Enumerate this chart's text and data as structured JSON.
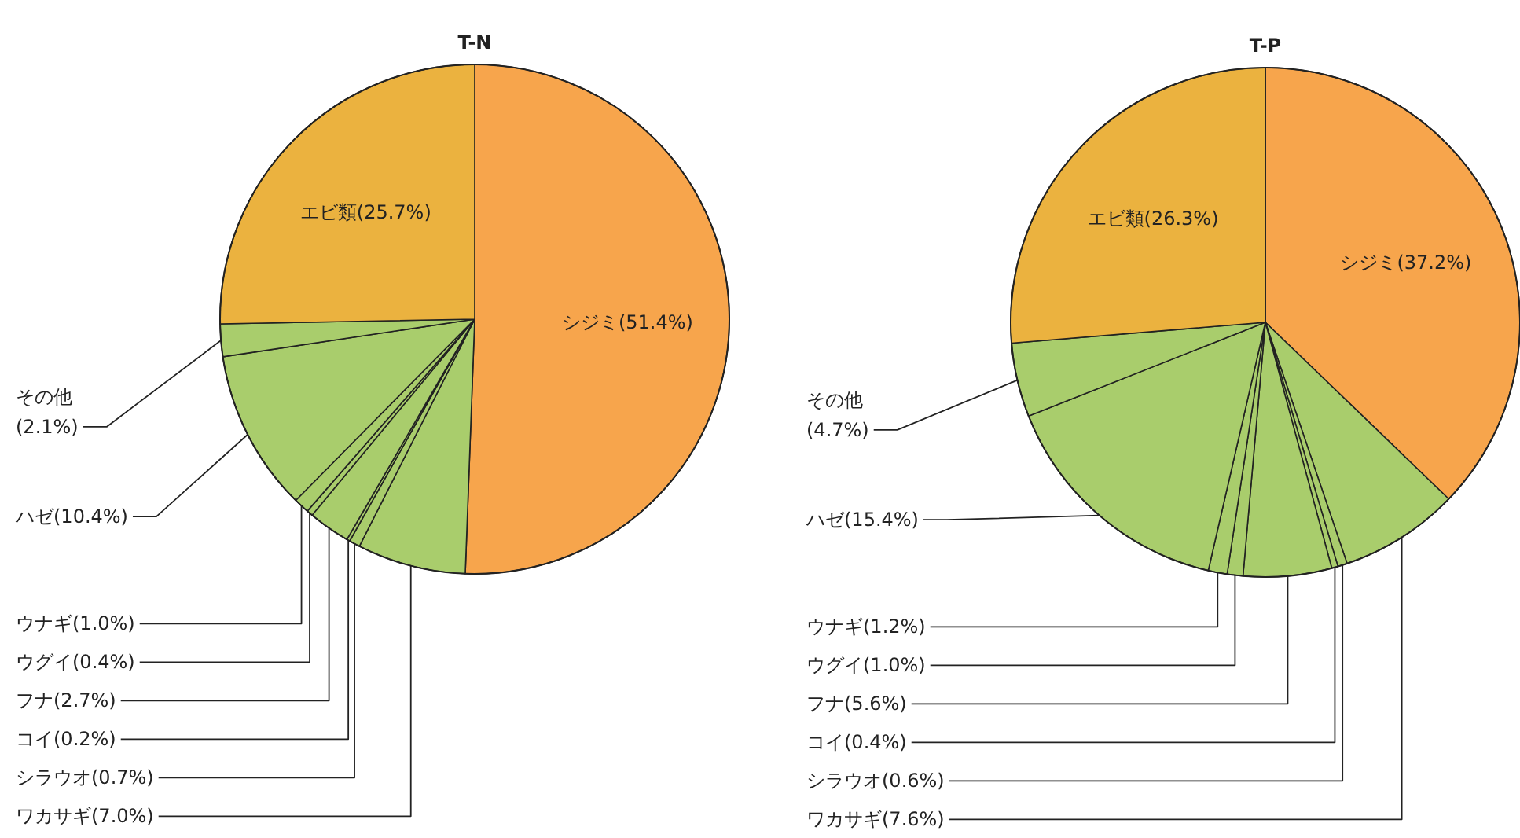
{
  "chart_data": [
    {
      "type": "pie",
      "title": "T-N",
      "categories": [
        "シジミ",
        "ワカサギ",
        "シラウオ",
        "コイ",
        "フナ",
        "ウグイ",
        "ウナギ",
        "ハゼ",
        "その他",
        "エビ類"
      ],
      "values": [
        51.4,
        7.0,
        0.7,
        0.2,
        2.7,
        0.4,
        1.0,
        10.4,
        2.1,
        25.7
      ],
      "value_labels": [
        "(51.4%)",
        "(7.0%)",
        "(0.7%)",
        "(0.2%)",
        "(2.7%)",
        "(0.4%)",
        "(1.0%)",
        "(10.4%)",
        "(2.1%)",
        "(25.7%)"
      ],
      "colors": [
        "#f7a54c",
        "#a9cd6c",
        "#a9cd6c",
        "#a9cd6c",
        "#a9cd6c",
        "#a9cd6c",
        "#a9cd6c",
        "#a9cd6c",
        "#a9cd6c",
        "#ebb23f"
      ]
    },
    {
      "type": "pie",
      "title": "T-P",
      "categories": [
        "シジミ",
        "ワカサギ",
        "シラウオ",
        "コイ",
        "フナ",
        "ウグイ",
        "ウナギ",
        "ハゼ",
        "その他",
        "エビ類"
      ],
      "values": [
        37.2,
        7.6,
        0.6,
        0.4,
        5.6,
        1.0,
        1.2,
        15.4,
        4.7,
        26.3
      ],
      "value_labels": [
        "(37.2%)",
        "(7.6%)",
        "(0.6%)",
        "(0.4%)",
        "(5.6%)",
        "(1.0%)",
        "(1.2%)",
        "(15.4%)",
        "(4.7%)",
        "(26.3%)"
      ],
      "colors": [
        "#f7a54c",
        "#a9cd6c",
        "#a9cd6c",
        "#a9cd6c",
        "#a9cd6c",
        "#a9cd6c",
        "#a9cd6c",
        "#a9cd6c",
        "#a9cd6c",
        "#ebb23f"
      ]
    }
  ]
}
